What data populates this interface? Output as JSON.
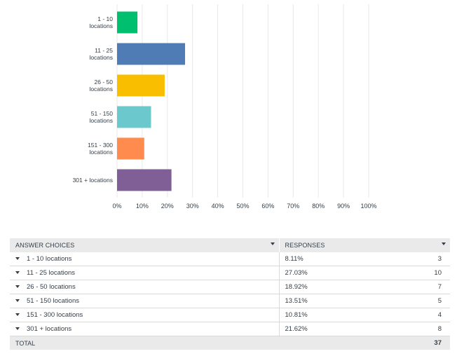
{
  "chart_data": {
    "type": "bar",
    "orientation": "horizontal",
    "categories": [
      [
        "1 - 10",
        "locations"
      ],
      [
        "11 - 25",
        "locations"
      ],
      [
        "26 - 50",
        "locations"
      ],
      [
        "51 - 150",
        "locations"
      ],
      [
        "151 - 300",
        "locations"
      ],
      [
        "301 + locations"
      ]
    ],
    "values": [
      8.11,
      27.03,
      18.92,
      13.51,
      10.81,
      21.62
    ],
    "colors": [
      "#00bf6f",
      "#507cb6",
      "#f9be00",
      "#6bc8cd",
      "#ff8b4f",
      "#7f5f96"
    ],
    "xlim": [
      0,
      100
    ],
    "xticks": [
      "0%",
      "10%",
      "20%",
      "30%",
      "40%",
      "50%",
      "60%",
      "70%",
      "80%",
      "90%",
      "100%"
    ],
    "grid": true,
    "title": "",
    "xlabel": "",
    "ylabel": ""
  },
  "table": {
    "headers": [
      "ANSWER CHOICES",
      "RESPONSES"
    ],
    "rows": [
      {
        "choice": "1 - 10 locations",
        "percent": "8.11%",
        "count": "3"
      },
      {
        "choice": "11 - 25 locations",
        "percent": "27.03%",
        "count": "10"
      },
      {
        "choice": "26 - 50 locations",
        "percent": "18.92%",
        "count": "7"
      },
      {
        "choice": "51 - 150 locations",
        "percent": "13.51%",
        "count": "5"
      },
      {
        "choice": "151 - 300 locations",
        "percent": "10.81%",
        "count": "4"
      },
      {
        "choice": "301 + locations",
        "percent": "21.62%",
        "count": "8"
      }
    ],
    "total_label": "TOTAL",
    "total_value": "37"
  }
}
